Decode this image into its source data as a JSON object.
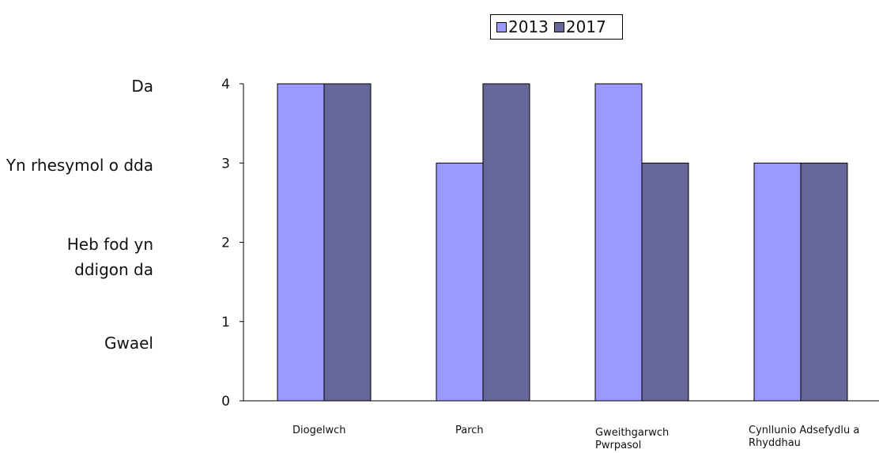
{
  "legend": {
    "items": [
      {
        "label": "2013",
        "color": "#9999ff"
      },
      {
        "label": "2017",
        "color": "#666699"
      }
    ]
  },
  "quality_scale": [
    {
      "label": "Da",
      "level": 4
    },
    {
      "label": "Yn rhesymol o dda",
      "level": 3
    },
    {
      "label": "Heb fod yn ddigon da",
      "level": 2
    },
    {
      "label": "Gwael",
      "level": 1
    }
  ],
  "chart_data": {
    "type": "bar",
    "categories": [
      "Diogelwch",
      "Parch",
      "Gweithgarwch Pwrpasol",
      "Cynllunio Adsefydlu a Rhyddhau"
    ],
    "series": [
      {
        "name": "2013",
        "values": [
          4,
          3,
          4,
          3
        ],
        "color": "#9999ff"
      },
      {
        "name": "2017",
        "values": [
          4,
          4,
          3,
          3
        ],
        "color": "#666699"
      }
    ],
    "y_ticks": [
      "0",
      "1",
      "2",
      "3",
      "4"
    ],
    "ylim": [
      0,
      4
    ],
    "grid": false,
    "legend_position": "top"
  }
}
